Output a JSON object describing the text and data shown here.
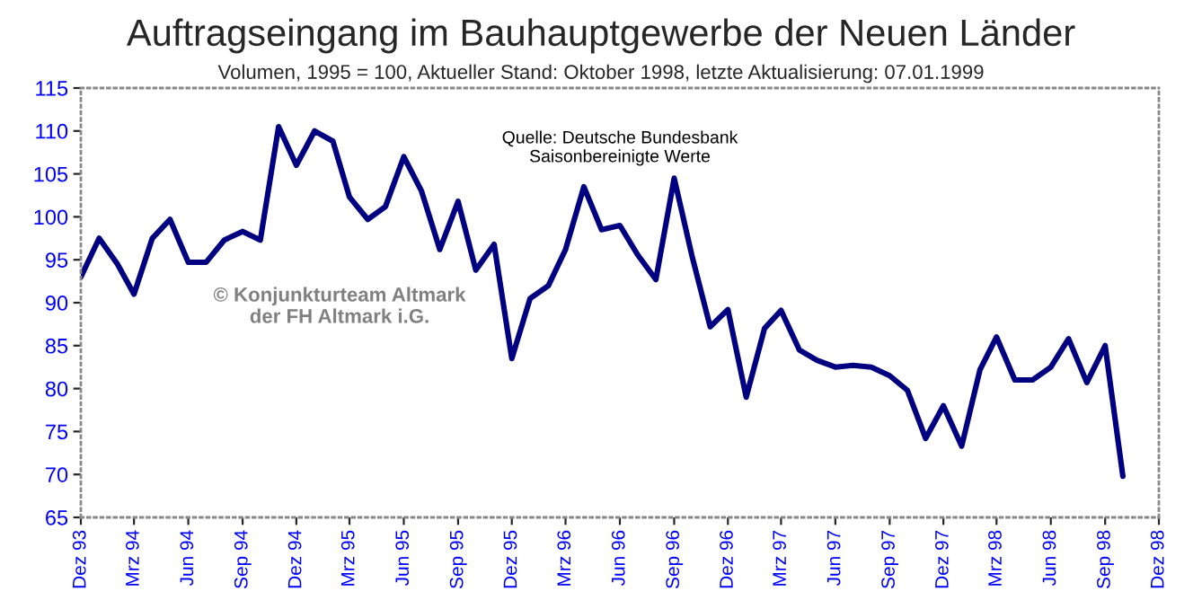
{
  "chart_data": {
    "type": "line",
    "title": "Auftragseingang im Bauhauptgewerbe der Neuen Länder",
    "subtitle": "Volumen, 1995 = 100, Aktueller Stand: Oktober 1998, letzte Aktualisierung: 07.01.1999",
    "annotations": [
      "Quelle: Deutsche Bundesbank\nSaisonbereinigte Werte",
      "© Konjunkturteam Altmark\nder FH Altmark i.G."
    ],
    "x": [
      "1993-12",
      "1994-01",
      "1994-02",
      "1994-03",
      "1994-04",
      "1994-05",
      "1994-06",
      "1994-07",
      "1994-08",
      "1994-09",
      "1994-10",
      "1994-11",
      "1994-12",
      "1995-01",
      "1995-02",
      "1995-03",
      "1995-04",
      "1995-05",
      "1995-06",
      "1995-07",
      "1995-08",
      "1995-09",
      "1995-10",
      "1995-11",
      "1995-12",
      "1996-01",
      "1996-02",
      "1996-03",
      "1996-04",
      "1996-05",
      "1996-06",
      "1996-07",
      "1996-08",
      "1996-09",
      "1996-10",
      "1996-11",
      "1996-12",
      "1997-01",
      "1997-02",
      "1997-03",
      "1997-04",
      "1997-05",
      "1997-06",
      "1997-07",
      "1997-08",
      "1997-09",
      "1997-10",
      "1997-11",
      "1997-12",
      "1998-01",
      "1998-02",
      "1998-03",
      "1998-04",
      "1998-05",
      "1998-06",
      "1998-07",
      "1998-08",
      "1998-09",
      "1998-10"
    ],
    "series": [
      {
        "color": "#000080",
        "values": [
          93,
          97.5,
          94.5,
          91,
          97.5,
          99.7,
          94.7,
          94.7,
          97.3,
          98.3,
          97.3,
          110.5,
          106,
          110,
          108.8,
          102.3,
          99.7,
          101.2,
          107,
          103,
          96.2,
          101.8,
          93.8,
          96.8,
          83.5,
          90.5,
          92,
          96.2,
          103.5,
          98.5,
          99,
          95.6,
          92.7,
          104.5,
          95.5,
          87.2,
          89.2,
          79,
          87,
          89.1,
          84.5,
          83.3,
          82.5,
          82.7,
          82.5,
          81.5,
          79.8,
          74.2,
          78,
          73.3,
          82.2,
          86,
          81,
          81,
          82.5,
          85.8,
          80.7,
          85,
          69.8
        ]
      }
    ],
    "xlim": [
      "1993-12",
      "1998-12"
    ],
    "xticks": [
      {
        "value": "1993-12",
        "label": "Dez 93"
      },
      {
        "value": "1994-03",
        "label": "Mrz 94"
      },
      {
        "value": "1994-06",
        "label": "Jun 94"
      },
      {
        "value": "1994-09",
        "label": "Sep 94"
      },
      {
        "value": "1994-12",
        "label": "Dez 94"
      },
      {
        "value": "1995-03",
        "label": "Mrz 95"
      },
      {
        "value": "1995-06",
        "label": "Jun 95"
      },
      {
        "value": "1995-09",
        "label": "Sep 95"
      },
      {
        "value": "1995-12",
        "label": "Dez 95"
      },
      {
        "value": "1996-03",
        "label": "Mrz 96"
      },
      {
        "value": "1996-06",
        "label": "Jun 96"
      },
      {
        "value": "1996-09",
        "label": "Sep 96"
      },
      {
        "value": "1996-12",
        "label": "Dez 96"
      },
      {
        "value": "1997-03",
        "label": "Mrz 97"
      },
      {
        "value": "1997-06",
        "label": "Jun 97"
      },
      {
        "value": "1997-09",
        "label": "Sep 97"
      },
      {
        "value": "1997-12",
        "label": "Dez 97"
      },
      {
        "value": "1998-03",
        "label": "Mrz 98"
      },
      {
        "value": "1998-06",
        "label": "Jun 98"
      },
      {
        "value": "1998-09",
        "label": "Sep 98"
      },
      {
        "value": "1998-12",
        "label": "Dez 98"
      }
    ],
    "ylim": [
      65,
      115
    ],
    "yticks": [
      65,
      70,
      75,
      80,
      85,
      90,
      95,
      100,
      105,
      110,
      115
    ],
    "grid": false,
    "legend": false,
    "marker": "none",
    "line_style": "solid"
  }
}
